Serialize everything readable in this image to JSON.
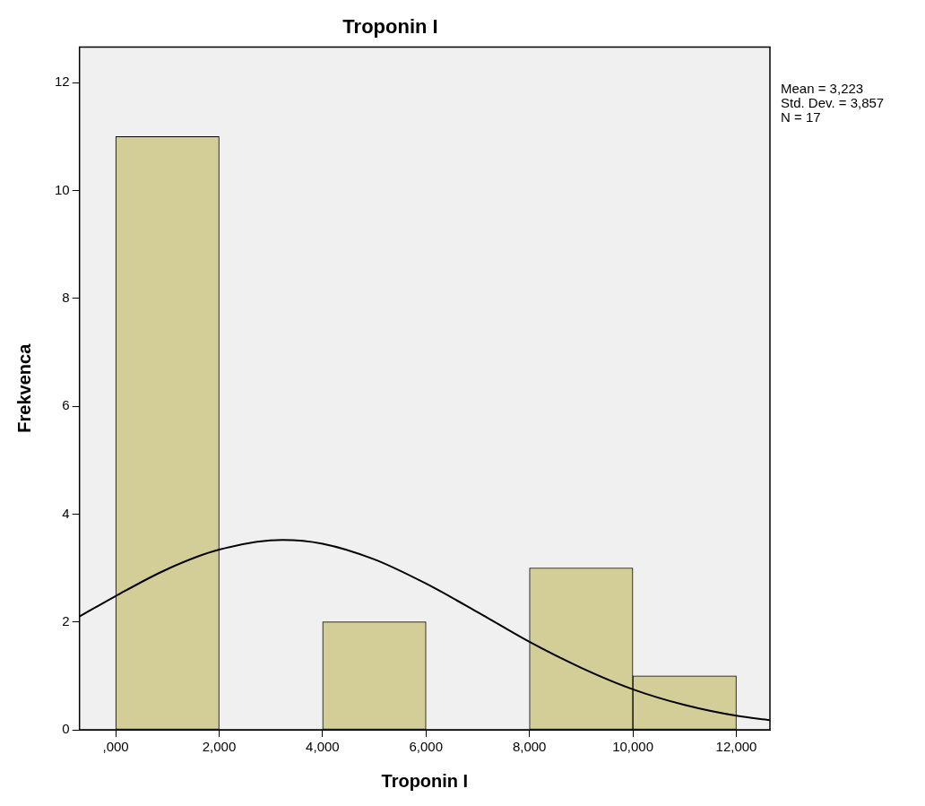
{
  "chart_data": {
    "type": "histogram",
    "title": "Troponin I",
    "xlabel": "Troponin I",
    "ylabel": "Frekvenca",
    "bins": [
      0,
      2000,
      4000,
      6000,
      8000,
      10000,
      12000
    ],
    "values": [
      11,
      0,
      2,
      0,
      3,
      1
    ],
    "color": "#d3ce97",
    "series": [
      {
        "type": "line",
        "color": "#000000",
        "x": [
          -700,
          0,
          1000,
          2000,
          3223,
          4000,
          5000,
          6000,
          7000,
          8000,
          9000,
          10000,
          11000,
          12000,
          12650
        ],
        "values": [
          2.1,
          2.48,
          2.98,
          3.34,
          3.52,
          3.45,
          3.16,
          2.71,
          2.18,
          1.63,
          1.15,
          0.75,
          0.46,
          0.26,
          0.18
        ]
      }
    ],
    "xlim": [
      -700,
      12650
    ],
    "xticks": [
      {
        "value": 0,
        "label": ",000"
      },
      {
        "value": 2000,
        "label": "2,000"
      },
      {
        "value": 4000,
        "label": "4,000"
      },
      {
        "value": 6000,
        "label": "6,000"
      },
      {
        "value": 8000,
        "label": "8,000"
      },
      {
        "value": 10000,
        "label": "10,000"
      },
      {
        "value": 12000,
        "label": "12,000"
      }
    ],
    "ylim": [
      0,
      12.66
    ],
    "yticks": [
      0,
      2,
      4,
      6,
      8,
      10,
      12
    ],
    "annotations": [
      "Mean = 3,223",
      "Std. Dev. = 3,857",
      "N = 17"
    ],
    "grid": false,
    "legend": false,
    "marker": "none",
    "line_style": "solid"
  }
}
